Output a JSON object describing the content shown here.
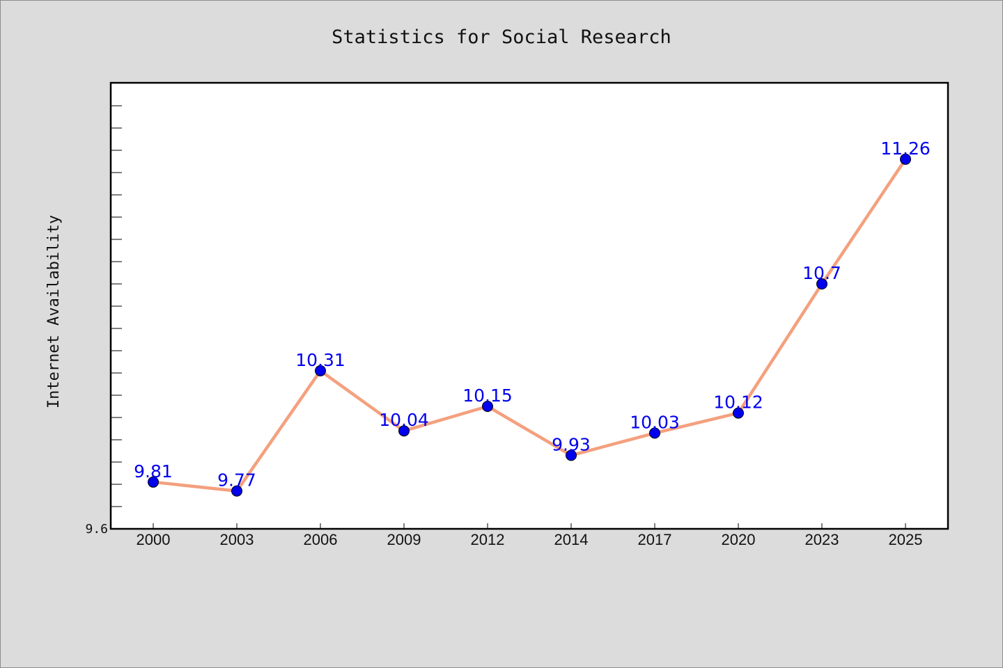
{
  "chart_data": {
    "type": "line",
    "title": "Statistics for Social Research",
    "xlabel": "",
    "ylabel": "Internet Availability",
    "categories": [
      "2000",
      "2003",
      "2006",
      "2009",
      "2012",
      "2014",
      "2017",
      "2020",
      "2023",
      "2025"
    ],
    "series": [
      {
        "values": [
          9.81,
          9.77,
          10.31,
          10.04,
          10.15,
          9.93,
          10.03,
          10.12,
          10.7,
          11.26
        ]
      }
    ],
    "data_labels": [
      "9.81",
      "9.77",
      "10.31",
      "10.04",
      "10.15",
      "9.93",
      "10.03",
      "10.12",
      "10.7",
      "11.26"
    ],
    "yticks": [
      "9.6"
    ],
    "ylim": [
      9.6,
      11.6
    ],
    "grid": false,
    "colors": {
      "line": "#f4a07e",
      "marker": "#0000ee",
      "label": "#0000ee",
      "plot_bg": "#ffffff",
      "page_bg": "#dcdcdc"
    }
  }
}
